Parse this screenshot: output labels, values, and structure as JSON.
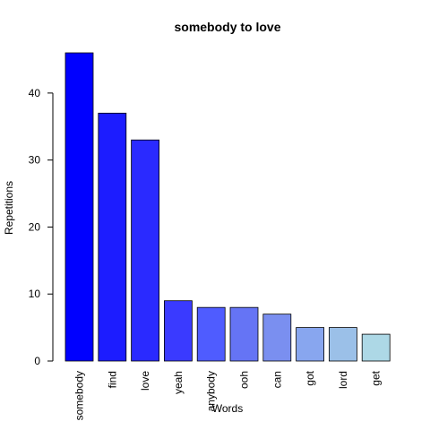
{
  "chart_data": {
    "type": "bar",
    "title": "somebody to love",
    "xlabel": "Words",
    "ylabel": "Repetitions",
    "categories": [
      "somebody",
      "find",
      "love",
      "yeah",
      "anybody",
      "ooh",
      "can",
      "got",
      "lord",
      "get"
    ],
    "values": [
      46,
      37,
      33,
      9,
      8,
      8,
      7,
      5,
      5,
      4
    ],
    "ylim": [
      0,
      46
    ],
    "yticks": [
      0,
      10,
      20,
      30,
      40
    ],
    "grid": false,
    "colors": [
      "#0000FF",
      "#1C1CFF",
      "#2A2AFF",
      "#3A3AFF",
      "#4F5CFF",
      "#6574F5",
      "#7A8FF0",
      "#88A6EF",
      "#9BC0E8",
      "#ADD8E6"
    ]
  }
}
